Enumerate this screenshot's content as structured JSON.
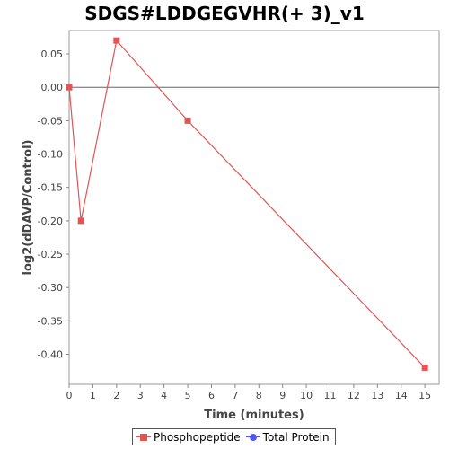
{
  "chart_data": {
    "type": "line",
    "title": "SDGS#LDDGEGVHR(+ 3)_v1",
    "xlabel": "Time (minutes)",
    "ylabel": "log2(dDAVP/Control)",
    "xlim": [
      0,
      15.6
    ],
    "ylim": [
      -0.445,
      0.085
    ],
    "x_ticks": [
      0,
      1,
      2,
      3,
      4,
      5,
      6,
      7,
      8,
      9,
      10,
      11,
      12,
      13,
      14,
      15
    ],
    "y_ticks": [
      0.05,
      0.0,
      -0.05,
      -0.1,
      -0.15,
      -0.2,
      -0.25,
      -0.3,
      -0.35,
      -0.4
    ],
    "y_tick_labels": [
      "0.05",
      "0.00",
      "-0.05",
      "-0.10",
      "-0.15",
      "-0.20",
      "-0.25",
      "-0.30",
      "-0.35",
      "-0.40"
    ],
    "zero_line": true,
    "grid": false,
    "legend_position": "bottom",
    "series": [
      {
        "name": "Phosphopeptide",
        "color": "#e05555",
        "marker": "square",
        "x": [
          0,
          0.5,
          2,
          5,
          15
        ],
        "y": [
          0.0,
          -0.2,
          0.07,
          -0.05,
          -0.42
        ]
      },
      {
        "name": "Total Protein",
        "color": "#5555ee",
        "marker": "circle",
        "x": [],
        "y": []
      }
    ]
  }
}
